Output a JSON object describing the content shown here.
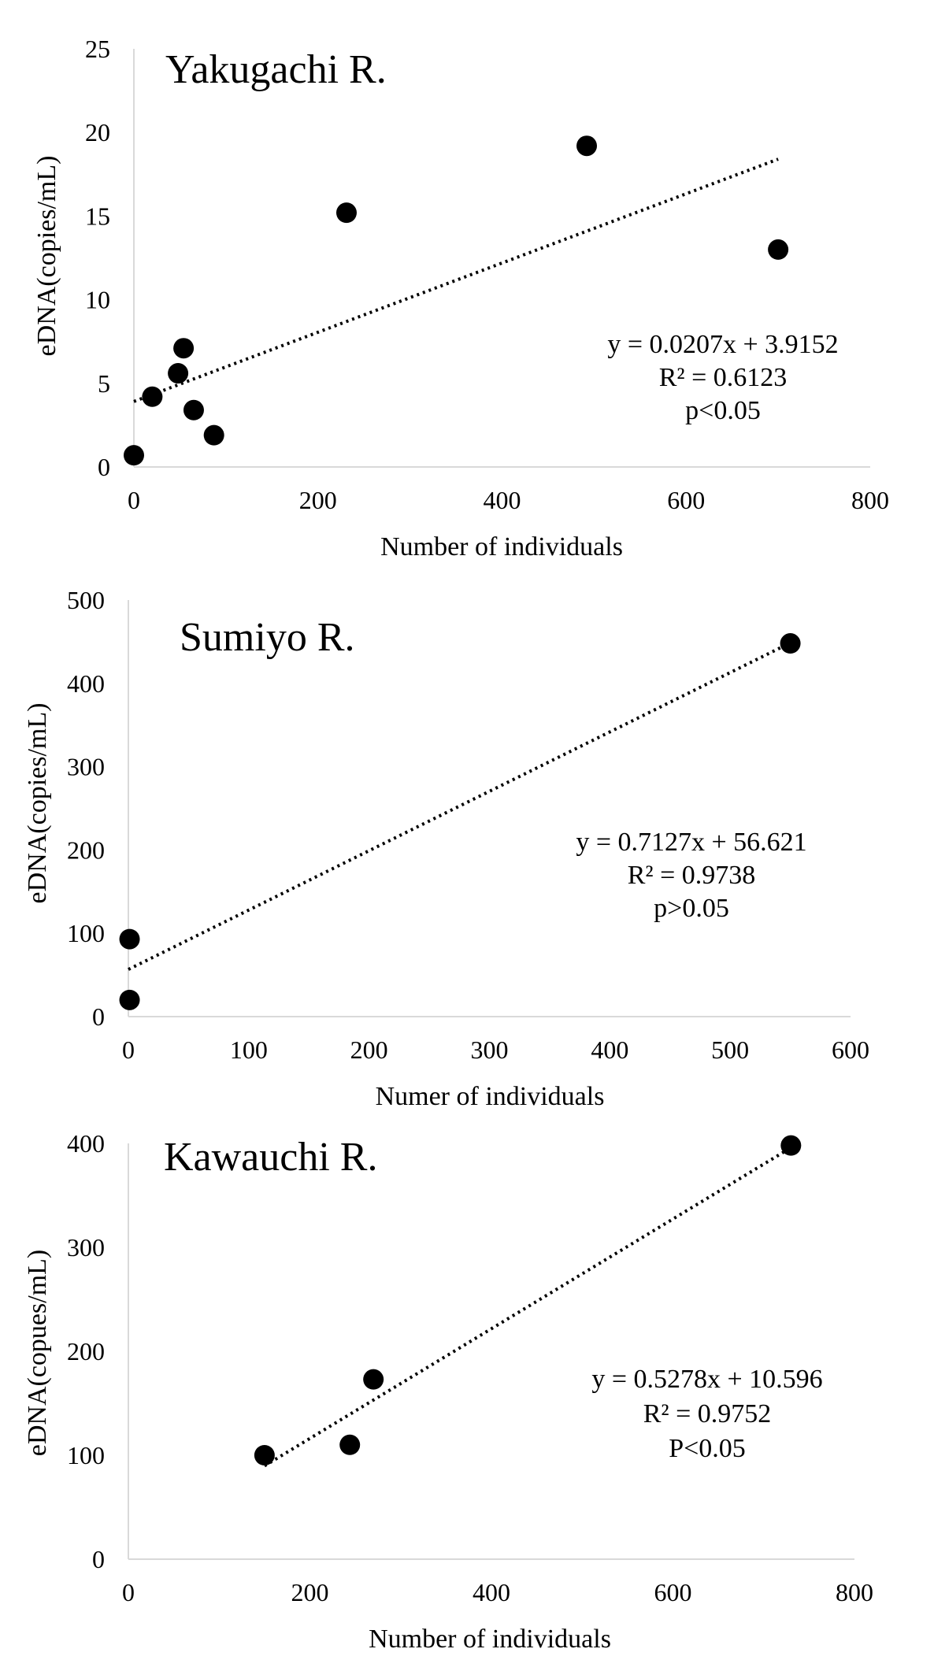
{
  "colors": {
    "point": "#000000",
    "trendline": "#000000",
    "axis": "#d9d9d9",
    "background": "#ffffff"
  },
  "chart_data": [
    {
      "type": "scatter",
      "title": "Yakugachi R.",
      "xlabel": "Number of individuals",
      "ylabel": "eDNA(copies/mL)",
      "xlim": [
        0,
        800
      ],
      "ylim": [
        0,
        25
      ],
      "xticks": [
        "0",
        "200",
        "400",
        "600",
        "800"
      ],
      "yticks": [
        "0",
        "5",
        "10",
        "15",
        "20",
        "25"
      ],
      "grid": false,
      "points": [
        {
          "x": 0,
          "y": 0.7
        },
        {
          "x": 20,
          "y": 4.2
        },
        {
          "x": 48,
          "y": 5.6
        },
        {
          "x": 54,
          "y": 7.1
        },
        {
          "x": 65,
          "y": 3.4
        },
        {
          "x": 87,
          "y": 1.9
        },
        {
          "x": 231,
          "y": 15.2
        },
        {
          "x": 492,
          "y": 19.2
        },
        {
          "x": 700,
          "y": 13.0
        }
      ],
      "trendline": {
        "slope": 0.0207,
        "intercept": 3.9152,
        "x_range": [
          0,
          700
        ]
      },
      "annotation": [
        "y = 0.0207x + 3.9152",
        "R² = 0.6123",
        "p<0.05"
      ]
    },
    {
      "type": "scatter",
      "title": "Sumiyo R.",
      "xlabel": "Numer of individuals",
      "ylabel": "eDNA(copies/mL)",
      "xlim": [
        0,
        600
      ],
      "ylim": [
        0,
        500
      ],
      "xticks": [
        "0",
        "100",
        "200",
        "300",
        "400",
        "500",
        "600"
      ],
      "yticks": [
        "0",
        "100",
        "200",
        "300",
        "400",
        "500"
      ],
      "grid": false,
      "points": [
        {
          "x": 1,
          "y": 93
        },
        {
          "x": 1,
          "y": 20
        },
        {
          "x": 550,
          "y": 448
        }
      ],
      "trendline": {
        "slope": 0.7127,
        "intercept": 56.621,
        "x_range": [
          0,
          550
        ]
      },
      "annotation": [
        "y = 0.7127x + 56.621",
        "R² = 0.9738",
        "p>0.05"
      ]
    },
    {
      "type": "scatter",
      "title": "Kawauchi R.",
      "xlabel": "Number of individuals",
      "ylabel": "eDNA(copues/mL)",
      "xlim": [
        0,
        800
      ],
      "ylim": [
        0,
        400
      ],
      "xticks": [
        "0",
        "200",
        "400",
        "600",
        "800"
      ],
      "yticks": [
        "0",
        "100",
        "200",
        "300",
        "400"
      ],
      "grid": false,
      "points": [
        {
          "x": 150,
          "y": 100
        },
        {
          "x": 244,
          "y": 110
        },
        {
          "x": 270,
          "y": 173
        },
        {
          "x": 730,
          "y": 398
        }
      ],
      "trendline": {
        "slope": 0.5278,
        "intercept": 10.596,
        "x_range": [
          150,
          730
        ]
      },
      "annotation": [
        "y = 0.5278x + 10.596",
        "R² = 0.9752",
        "P<0.05"
      ]
    }
  ]
}
